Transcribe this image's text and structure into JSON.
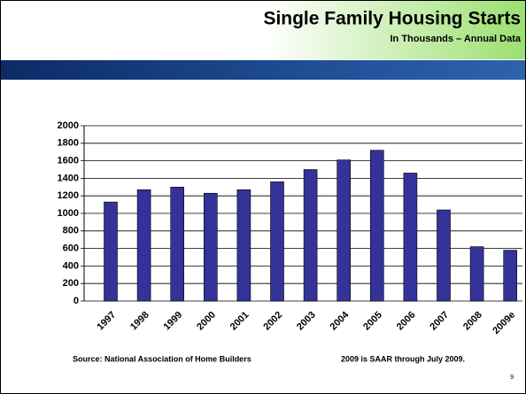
{
  "chart_data": {
    "type": "bar",
    "title": "Single Family Housing Starts",
    "subtitle": "In Thousands – Annual Data",
    "categories": [
      "1997",
      "1998",
      "1999",
      "2000",
      "2001",
      "2002",
      "2003",
      "2004",
      "2005",
      "2006",
      "2007",
      "2008",
      "2009e"
    ],
    "values": [
      1130,
      1270,
      1300,
      1230,
      1270,
      1360,
      1500,
      1610,
      1720,
      1460,
      1040,
      620,
      580
    ],
    "color": "#333399",
    "ylim": [
      0,
      2000
    ],
    "yticks": [
      0,
      200,
      400,
      600,
      800,
      1000,
      1200,
      1400,
      1600,
      1800,
      2000
    ],
    "grid": true,
    "source": "Source: National Association of Home Builders",
    "note": "2009 is SAAR through July 2009.",
    "page_number": "9"
  }
}
